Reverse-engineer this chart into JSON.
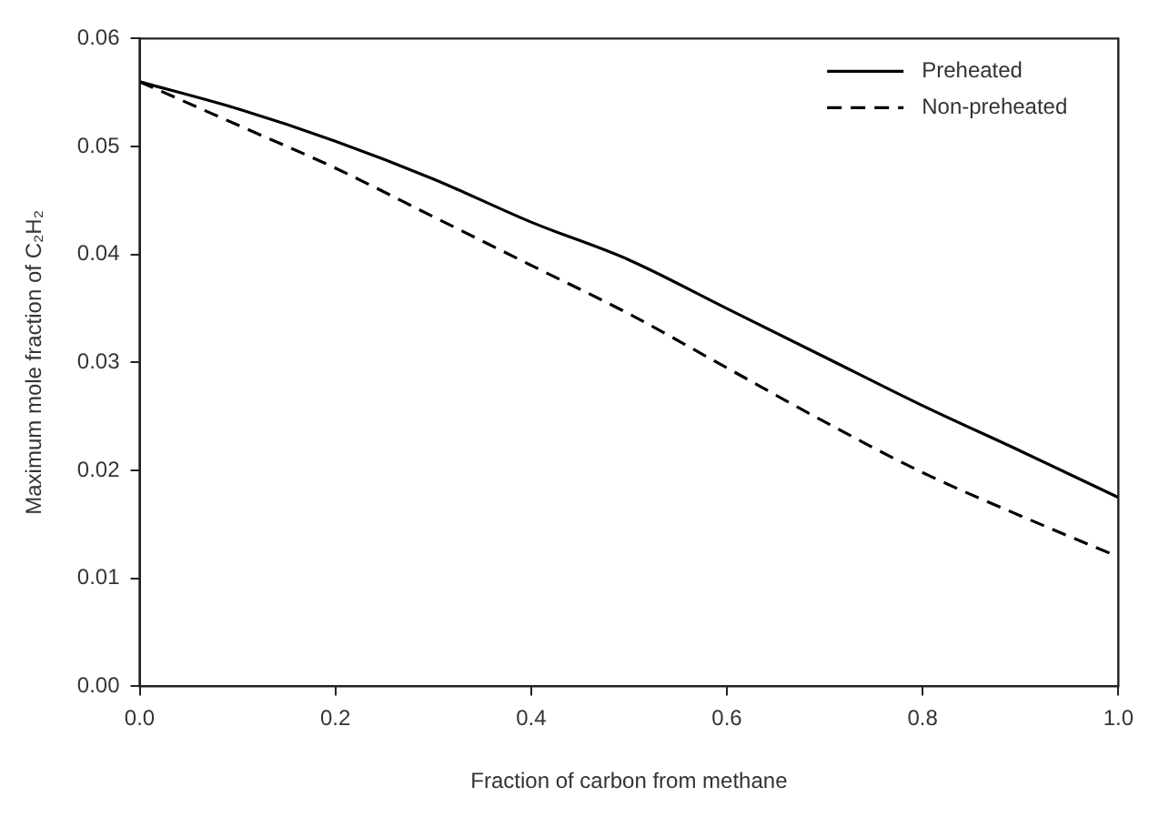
{
  "chart_data": {
    "type": "line",
    "xlabel": "Fraction of carbon from methane",
    "ylabel": "Maximum mole fraction of C₂H₂",
    "x": [
      0,
      0.1,
      0.2,
      0.3,
      0.4,
      0.5,
      0.6,
      0.7,
      0.8,
      0.9,
      1.0
    ],
    "series": [
      {
        "name": "Preheated",
        "color": "#000000",
        "line_style": "solid",
        "values": [
          0.056,
          0.0535,
          0.0505,
          0.047,
          0.043,
          0.0395,
          0.035,
          0.0305,
          0.026,
          0.0218,
          0.0175
        ]
      },
      {
        "name": "Non-preheated",
        "color": "#000000",
        "line_style": "dashed",
        "values": [
          0.056,
          0.052,
          0.048,
          0.0435,
          0.039,
          0.0345,
          0.0295,
          0.0245,
          0.0198,
          0.0158,
          0.012
        ]
      }
    ],
    "xlim": [
      0,
      1
    ],
    "xticks": [
      {
        "value": 0,
        "label": "0.0"
      },
      {
        "value": 0.2,
        "label": "0.2"
      },
      {
        "value": 0.4,
        "label": "0.4"
      },
      {
        "value": 0.6,
        "label": "0.6"
      },
      {
        "value": 0.8,
        "label": "0.8"
      },
      {
        "value": 1,
        "label": "1.0"
      }
    ],
    "ylim": [
      0,
      0.06
    ],
    "yticks": [
      {
        "value": 0,
        "label": "0.00"
      },
      {
        "value": 0.01,
        "label": "0.01"
      },
      {
        "value": 0.02,
        "label": "0.02"
      },
      {
        "value": 0.03,
        "label": "0.03"
      },
      {
        "value": 0.04,
        "label": "0.04"
      },
      {
        "value": 0.05,
        "label": "0.05"
      },
      {
        "value": 0.06,
        "label": "0.06"
      }
    ],
    "legend": "top right",
    "marker": "none"
  }
}
